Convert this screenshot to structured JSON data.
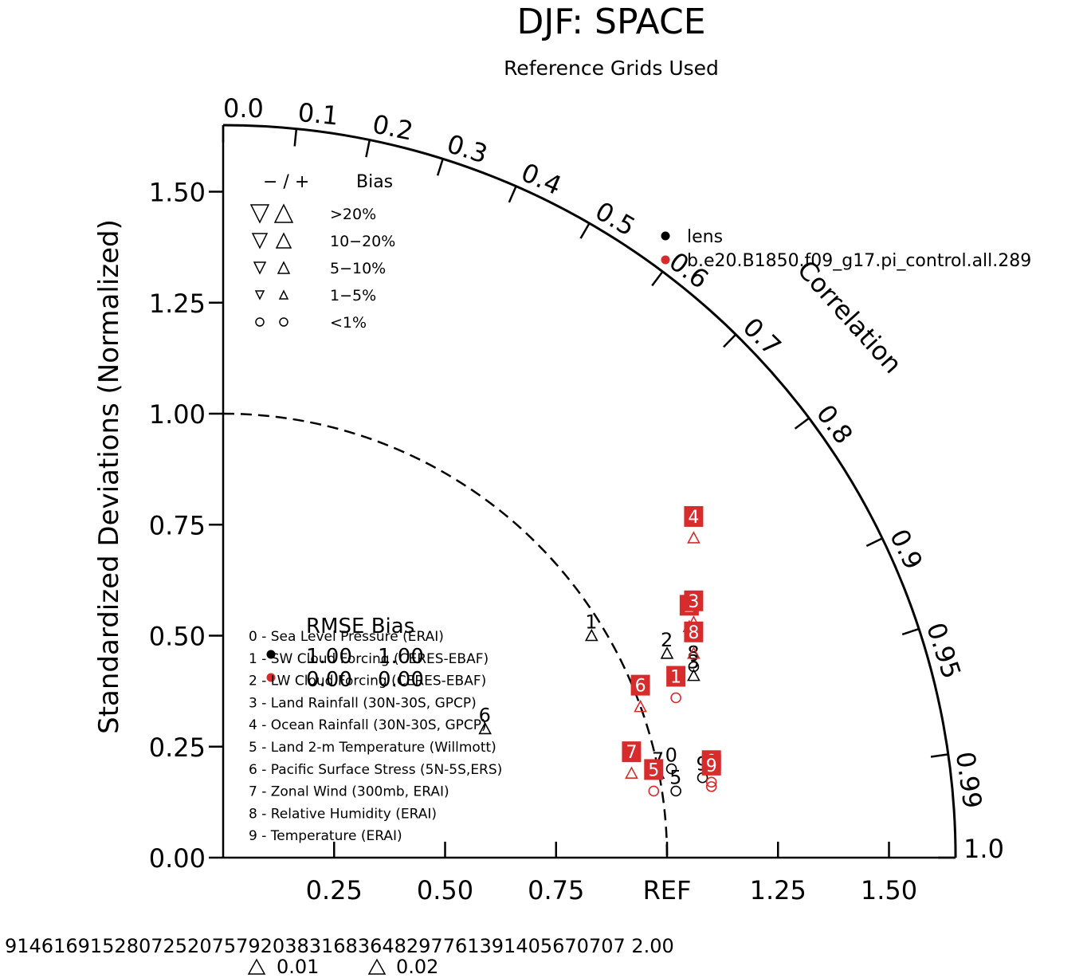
{
  "chart_data": {
    "type": "scatter",
    "title": "DJF: SPACE",
    "subtitle": "Reference Grids Used",
    "ylabel": "Standardized Deviations (Normalized)",
    "correlation_label": "Correlation",
    "ref_label": "REF",
    "ylim": [
      0,
      1.65
    ],
    "y_ticks": [
      "0.00",
      "0.25",
      "0.50",
      "0.75",
      "1.00",
      "1.25",
      "1.50"
    ],
    "x_ticks": [
      "0.25",
      "0.50",
      "0.75",
      "REF",
      "1.25",
      "1.50"
    ],
    "correlation_ticks": [
      "0.0",
      "0.1",
      "0.2",
      "0.3",
      "0.4",
      "0.5",
      "0.6",
      "0.7",
      "0.8",
      "0.9",
      "0.95",
      "0.99",
      "1.0"
    ],
    "reference_arc": 1.0,
    "bias_legend": {
      "header_sign": "− / +",
      "header_bias": "Bias",
      "rows": [
        "&gt;20%",
        "10−20%",
        "5−10%",
        "1−5%",
        "&lt;1%"
      ]
    },
    "case_legend": [
      {
        "name": "lens",
        "color": "#000000"
      },
      {
        "name": "b.e20.B1850.f09_g17.pi_control.all.289",
        "color": "#d62c2c"
      }
    ],
    "variables_legend": [
      "0 - Sea Level Pressure (ERAI)",
      "1 - SW Cloud Forcing (CERES-EBAF)",
      "2 - LW Cloud Forcing (CERES-EBAF)",
      "3 - Land Rainfall (30N-30S, GPCP)",
      "4 - Ocean Rainfall (30N-30S, GPCP)",
      "5 - Land 2-m Temperature (Willmott)",
      "6 - Pacific Surface Stress (5N-5S,ERS)",
      "7 - Zonal Wind (300mb, ERAI)",
      "8 - Relative Humidity (ERAI)",
      "9 - Temperature (ERAI)"
    ],
    "rmse_bias_header": "RMSE Bias",
    "rmse_bias_values": [
      {
        "rmse": "1.00",
        "bias": "1.00"
      },
      {
        "rmse": "0.00",
        "bias": "0.00"
      }
    ],
    "series": [
      {
        "name": "lens",
        "color": "#000000",
        "points": [
          {
            "id": "0",
            "x": 1.01,
            "y": 0.2,
            "marker": "circle"
          },
          {
            "id": "1",
            "x": 0.83,
            "y": 0.5,
            "marker": "triangle-up"
          },
          {
            "id": "2",
            "x": 1.0,
            "y": 0.46,
            "marker": "triangle-up"
          },
          {
            "id": "3",
            "x": 1.06,
            "y": 0.41,
            "marker": "triangle-up"
          },
          {
            "id": "5",
            "x": 1.02,
            "y": 0.15,
            "marker": "circle"
          },
          {
            "id": "6",
            "x": 0.59,
            "y": 0.29,
            "marker": "triangle-up"
          },
          {
            "id": "7",
            "x": 0.98,
            "y": 0.19,
            "marker": "triangle-up"
          },
          {
            "id": "8",
            "x": 1.06,
            "y": 0.43,
            "marker": "circle"
          },
          {
            "id": "9",
            "x": 1.08,
            "y": 0.18,
            "marker": "circle"
          }
        ]
      },
      {
        "name": "b.e20.B1850.f09_g17.pi_control.all.289",
        "color": "#d62c2c",
        "points": [
          {
            "id": "0",
            "x": 1.1,
            "y": 0.17,
            "marker": "circle"
          },
          {
            "id": "1",
            "x": 1.02,
            "y": 0.36,
            "marker": "circle"
          },
          {
            "id": "2",
            "x": 1.05,
            "y": 0.52,
            "marker": "triangle-up"
          },
          {
            "id": "3",
            "x": 1.06,
            "y": 0.53,
            "marker": "triangle-up"
          },
          {
            "id": "4",
            "x": 1.06,
            "y": 0.72,
            "marker": "triangle-up"
          },
          {
            "id": "5",
            "x": 0.97,
            "y": 0.15,
            "marker": "circle"
          },
          {
            "id": "6",
            "x": 0.94,
            "y": 0.34,
            "marker": "triangle-up"
          },
          {
            "id": "7",
            "x": 0.92,
            "y": 0.19,
            "marker": "triangle-up"
          },
          {
            "id": "8",
            "x": 1.06,
            "y": 0.46,
            "marker": "triangle-up"
          },
          {
            "id": "9",
            "x": 1.1,
            "y": 0.16,
            "marker": "circle"
          }
        ]
      }
    ],
    "footer": {
      "overlap_text": "914616915280725207579203831683648297761391405670707 2.00",
      "scale_1": "0.01",
      "scale_2": "0.02"
    }
  }
}
